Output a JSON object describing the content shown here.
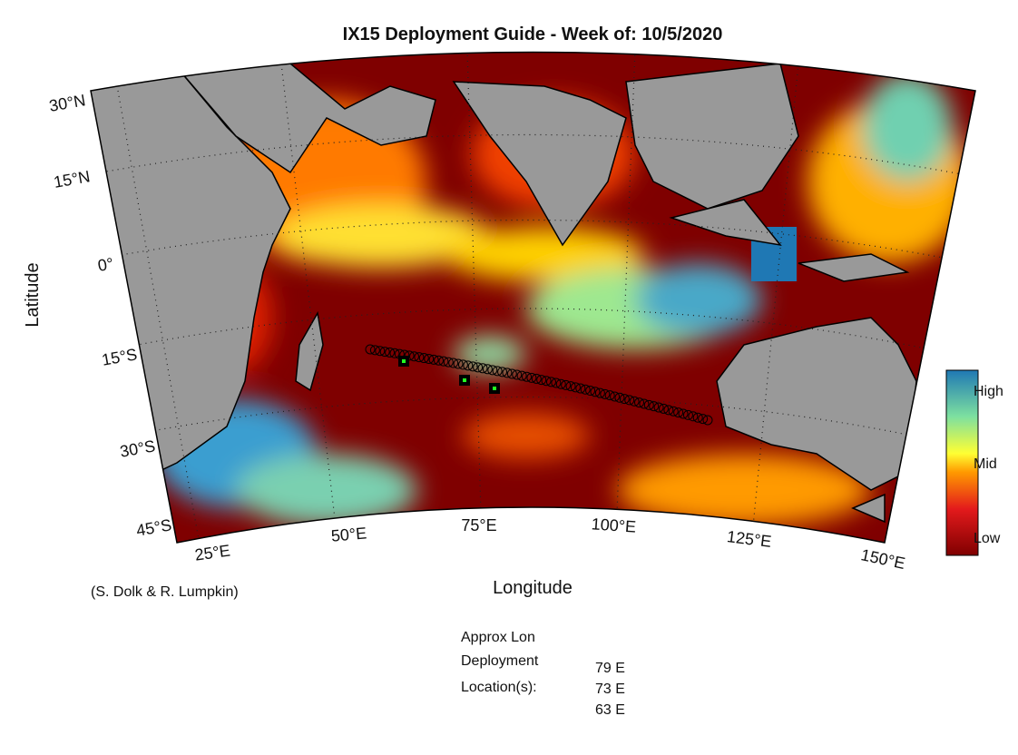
{
  "title": "IX15 Deployment Guide - Week of: 10/5/2020",
  "axes": {
    "x_label": "Longitude",
    "y_label": "Latitude",
    "lat_ticks": [
      "30°N",
      "15°N",
      "0°",
      "15°S",
      "30°S",
      "45°S"
    ],
    "lon_ticks": [
      "25°E",
      "50°E",
      "75°E",
      "100°E",
      "125°E",
      "150°E"
    ]
  },
  "colorbar": {
    "labels": [
      "High",
      "Mid",
      "Low"
    ]
  },
  "credit": "(S. Dolk & R. Lumpkin)",
  "deployment": {
    "header": [
      "Approx Lon",
      "Deployment",
      "Location(s):"
    ],
    "longitudes": [
      "79 E",
      "73 E",
      "63 E"
    ]
  }
}
